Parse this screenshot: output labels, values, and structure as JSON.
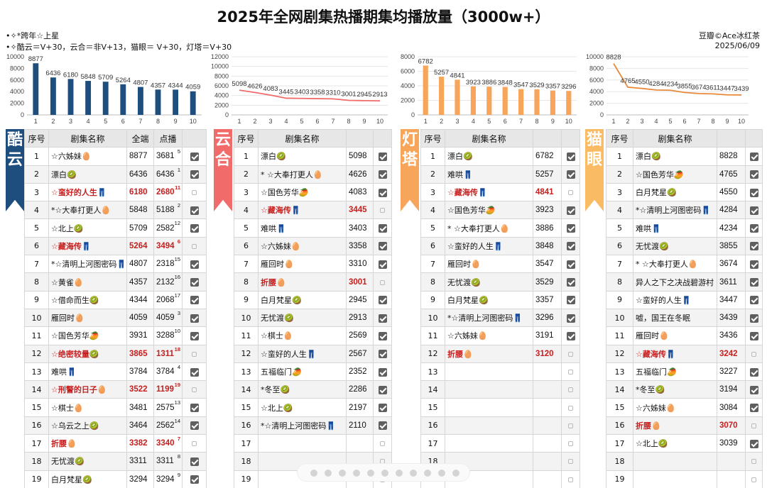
{
  "title": "2025年全网剧集热播期集均播放量（3000w+）",
  "notes": [
    "•✧*跨年☆上星",
    "•✧酷云＝V+30，云合＝非V+13，猫眼＝ V+30，灯塔＝V+30"
  ],
  "source": "豆瓣©Ace冰红茶",
  "date": "2025/06/09",
  "colors": {
    "kuyun": "#1d4e7e",
    "yunhe": "#f26b6b",
    "dengta": "#f6a55a",
    "maoyan": "#f9bc64",
    "red_text": "#c81e1e"
  },
  "platforms": {
    "kuyun": {
      "label": "酷云",
      "head": [
        "序号",
        "剧集名称",
        "全端",
        "点播",
        ""
      ]
    },
    "yunhe": {
      "label": "云合",
      "head": [
        "序号",
        "剧集名称",
        "",
        ""
      ]
    },
    "dengta": {
      "label": "灯塔",
      "head": [
        "序号",
        "剧集名称",
        "",
        ""
      ]
    },
    "maoyan": {
      "label": "猫眼",
      "head": [
        "序号",
        "剧集名称",
        "",
        ""
      ]
    }
  },
  "chart_data": [
    {
      "type": "bar",
      "platform": "酷云",
      "categories": [
        "1",
        "2",
        "3",
        "4",
        "5",
        "6",
        "7",
        "8",
        "9",
        "10"
      ],
      "values": [
        8877,
        6436,
        6180,
        5848,
        5709,
        5264,
        4807,
        4357,
        4344,
        4059
      ],
      "ylim": [
        0,
        10000
      ],
      "yticks": [
        "0",
        "2000",
        "4000",
        "6000",
        "8000",
        "10000"
      ],
      "grid": false,
      "color": "#1d4e7e"
    },
    {
      "type": "line",
      "platform": "云合",
      "categories": [
        "1",
        "2",
        "3",
        "4",
        "5",
        "6",
        "7",
        "8",
        "9",
        "10"
      ],
      "values": [
        5098,
        4626,
        4083,
        3445,
        3403,
        3358,
        3310,
        3001,
        2945,
        2913
      ],
      "ylim": [
        0,
        12000
      ],
      "yticks": [
        "0",
        "2000",
        "4000",
        "6000",
        "8000",
        "10000",
        "12000"
      ],
      "grid": true,
      "color": "#f26b6b"
    },
    {
      "type": "bar",
      "platform": "灯塔",
      "categories": [
        "1",
        "2",
        "3",
        "4",
        "5",
        "6",
        "7",
        "8",
        "9",
        "10"
      ],
      "values": [
        6782,
        5257,
        4841,
        3923,
        3886,
        3848,
        3547,
        3529,
        3357,
        3296
      ],
      "ylim": [
        0,
        8000
      ],
      "yticks": [
        "0",
        "2000",
        "4000",
        "6000",
        "8000"
      ],
      "grid": true,
      "color": "#f6a55a"
    },
    {
      "type": "line",
      "platform": "猫眼",
      "categories": [
        "1",
        "2",
        "3",
        "4",
        "5",
        "6",
        "7",
        "8",
        "9",
        "10"
      ],
      "values": [
        8828,
        4765,
        4550,
        4284,
        4234,
        3855,
        3674,
        3611,
        3447,
        3439
      ],
      "ylim": [
        0,
        10000
      ],
      "yticks": [
        "0",
        "2000",
        "4000",
        "6000",
        "8000",
        "10000"
      ],
      "grid": true,
      "color": "#e8893a"
    }
  ],
  "tables": {
    "kuyun": [
      {
        "no": "1",
        "name": "☆六姊妹🥚",
        "a": "8877",
        "b": "3681",
        "r": "5",
        "ck": true
      },
      {
        "no": "2",
        "name": "漂白🥝",
        "a": "6436",
        "b": "6436",
        "r": "1",
        "ck": true
      },
      {
        "no": "3",
        "name": "☆蛮好的人生👖",
        "a": "6180",
        "b": "2680",
        "r": "11",
        "ck": false,
        "red": true
      },
      {
        "no": "4",
        "name": "*☆大奉打更人🥚",
        "a": "5848",
        "b": "5188",
        "r": "2",
        "ck": true
      },
      {
        "no": "5",
        "name": "☆北上🥝",
        "a": "5709",
        "b": "2582",
        "r": "12",
        "ck": true
      },
      {
        "no": "6",
        "name": "☆藏海传👖",
        "a": "5264",
        "b": "3494",
        "r": "6",
        "ck": false,
        "red": true
      },
      {
        "no": "7",
        "name": "*☆清明上河图密码👖",
        "a": "4807",
        "b": "2318",
        "r": "15",
        "ck": true
      },
      {
        "no": "8",
        "name": "☆黄雀🥚",
        "a": "4357",
        "b": "2132",
        "r": "16",
        "ck": true
      },
      {
        "no": "9",
        "name": "☆借命而生🥝",
        "a": "4344",
        "b": "2068",
        "r": "17",
        "ck": true
      },
      {
        "no": "10",
        "name": "雁回时🥚",
        "a": "4059",
        "b": "4059",
        "r": "3",
        "ck": true
      },
      {
        "no": "11",
        "name": "☆国色芳华🥭",
        "a": "3931",
        "b": "3288",
        "r": "10",
        "ck": true
      },
      {
        "no": "12",
        "name": "☆绝密较量🥝",
        "a": "3865",
        "b": "1311",
        "r": "18",
        "ck": false,
        "red": true
      },
      {
        "no": "13",
        "name": "难哄👖",
        "a": "3784",
        "b": "3784",
        "r": "4",
        "ck": true
      },
      {
        "no": "14",
        "name": "☆刑警的日子🥚",
        "a": "3522",
        "b": "1199",
        "r": "19",
        "ck": false,
        "red": true
      },
      {
        "no": "15",
        "name": "☆棋士🥚",
        "a": "3481",
        "b": "2575",
        "r": "13",
        "ck": true
      },
      {
        "no": "16",
        "name": "☆乌云之上🥝",
        "a": "3464",
        "b": "2562",
        "r": "14",
        "ck": true
      },
      {
        "no": "17",
        "name": "折腰🥚",
        "a": "3382",
        "b": "3340",
        "r": "7",
        "ck": false,
        "red": true
      },
      {
        "no": "18",
        "name": "无忧渡🥝",
        "a": "3311",
        "b": "3311",
        "r": "8",
        "ck": true
      },
      {
        "no": "19",
        "name": "白月梵星🥝",
        "a": "3294",
        "b": "3294",
        "r": "9",
        "ck": true
      }
    ],
    "yunhe": [
      {
        "no": "1",
        "name": "漂白🥝",
        "a": "5098",
        "ck": true
      },
      {
        "no": "2",
        "name": "* ☆大奉打更人🥚",
        "a": "4626",
        "ck": true
      },
      {
        "no": "3",
        "name": "☆国色芳华🥭",
        "a": "4083",
        "ck": true
      },
      {
        "no": "4",
        "name": "☆藏海传👖",
        "a": "3445",
        "ck": false,
        "red": true
      },
      {
        "no": "5",
        "name": "难哄👖",
        "a": "3403",
        "ck": true
      },
      {
        "no": "6",
        "name": "☆六姊妹🥚",
        "a": "3358",
        "ck": true
      },
      {
        "no": "7",
        "name": "雁回时🥚",
        "a": "3310",
        "ck": true
      },
      {
        "no": "8",
        "name": "折腰🥚",
        "a": "3001",
        "ck": false,
        "red": true
      },
      {
        "no": "9",
        "name": "白月梵星🥝",
        "a": "2945",
        "ck": true
      },
      {
        "no": "10",
        "name": "无忧渡🥝",
        "a": "2913",
        "ck": true
      },
      {
        "no": "11",
        "name": "☆棋士🥚",
        "a": "2569",
        "ck": true
      },
      {
        "no": "12",
        "name": "☆蛮好的人生👖",
        "a": "2567",
        "ck": true
      },
      {
        "no": "13",
        "name": "五福临门🥭",
        "a": "2352",
        "ck": true
      },
      {
        "no": "14",
        "name": "*冬至🥝",
        "a": "2286",
        "ck": true
      },
      {
        "no": "15",
        "name": "☆北上🥝",
        "a": "2197",
        "ck": true
      },
      {
        "no": "16",
        "name": "*☆清明上河图密码👖",
        "a": "2110",
        "ck": true
      },
      {
        "no": "17",
        "name": "",
        "a": "",
        "ck": false
      },
      {
        "no": "18",
        "name": "",
        "a": "",
        "ck": false
      },
      {
        "no": "19",
        "name": "",
        "a": "",
        "ck": false
      }
    ],
    "dengta": [
      {
        "no": "1",
        "name": "漂白🥝",
        "a": "6782",
        "ck": true
      },
      {
        "no": "2",
        "name": "难哄👖",
        "a": "5257",
        "ck": true
      },
      {
        "no": "3",
        "name": "☆藏海传👖",
        "a": "4841",
        "ck": false,
        "red": true
      },
      {
        "no": "4",
        "name": "☆国色芳华🥭",
        "a": "3923",
        "ck": true
      },
      {
        "no": "5",
        "name": "* ☆大奉打更人🥚",
        "a": "3886",
        "ck": true
      },
      {
        "no": "6",
        "name": "☆蛮好的人生👖",
        "a": "3848",
        "ck": true
      },
      {
        "no": "7",
        "name": "雁回时🥚",
        "a": "3547",
        "ck": true
      },
      {
        "no": "8",
        "name": "无忧渡🥝",
        "a": "3529",
        "ck": true
      },
      {
        "no": "9",
        "name": "白月梵星🥝",
        "a": "3357",
        "ck": true
      },
      {
        "no": "10",
        "name": "*☆清明上河图密码👖",
        "a": "3296",
        "ck": true
      },
      {
        "no": "11",
        "name": "☆六姊妹🥚",
        "a": "3191",
        "ck": true
      },
      {
        "no": "12",
        "name": "折腰🥚",
        "a": "3120",
        "ck": false,
        "red": true
      },
      {
        "no": "13",
        "name": "",
        "a": "",
        "ck": false
      },
      {
        "no": "14",
        "name": "",
        "a": "",
        "ck": false
      },
      {
        "no": "15",
        "name": "",
        "a": "",
        "ck": false
      },
      {
        "no": "16",
        "name": "",
        "a": "",
        "ck": false
      },
      {
        "no": "17",
        "name": "",
        "a": "",
        "ck": false
      },
      {
        "no": "18",
        "name": "",
        "a": "",
        "ck": false
      },
      {
        "no": "19",
        "name": "",
        "a": "",
        "ck": false
      }
    ],
    "maoyan": [
      {
        "no": "1",
        "name": "漂白🥝",
        "a": "8828",
        "ck": true
      },
      {
        "no": "2",
        "name": "☆国色芳华🥭",
        "a": "4765",
        "ck": true
      },
      {
        "no": "3",
        "name": "白月梵星🥝",
        "a": "4550",
        "ck": true
      },
      {
        "no": "4",
        "name": "*☆清明上河图密码👖",
        "a": "4284",
        "ck": true
      },
      {
        "no": "5",
        "name": "难哄👖",
        "a": "4234",
        "ck": true
      },
      {
        "no": "6",
        "name": "无忧渡🥝",
        "a": "3855",
        "ck": true
      },
      {
        "no": "7",
        "name": "* ☆大奉打更人🥚",
        "a": "3674",
        "ck": true
      },
      {
        "no": "8",
        "name": "异人之下之决战碧游村",
        "a": "3611",
        "ck": true
      },
      {
        "no": "9",
        "name": "☆蛮好的人生👖",
        "a": "3447",
        "ck": true
      },
      {
        "no": "10",
        "name": "嘘，国王在冬眠",
        "a": "3439",
        "ck": true
      },
      {
        "no": "11",
        "name": "雁回时🥚",
        "a": "3436",
        "ck": true
      },
      {
        "no": "12",
        "name": "☆藏海传👖",
        "a": "3242",
        "ck": false,
        "red": true
      },
      {
        "no": "13",
        "name": "五福临门🥭",
        "a": "3227",
        "ck": true
      },
      {
        "no": "14",
        "name": "*冬至🥝",
        "a": "3194",
        "ck": true
      },
      {
        "no": "15",
        "name": "☆六姊妹🥚",
        "a": "3084",
        "ck": true
      },
      {
        "no": "16",
        "name": "折腰🥚",
        "a": "3070",
        "ck": false,
        "red": true
      },
      {
        "no": "17",
        "name": "☆北上🥝",
        "a": "3039",
        "ck": true
      },
      {
        "no": "18",
        "name": "",
        "a": "",
        "ck": false
      },
      {
        "no": "19",
        "name": "",
        "a": "",
        "ck": false
      }
    ]
  }
}
